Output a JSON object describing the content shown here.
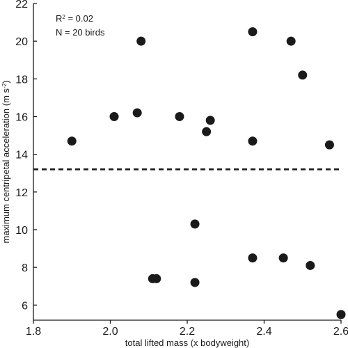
{
  "chart_data": {
    "type": "scatter",
    "xlabel": "total lifted mass (x bodyweight)",
    "ylabel_main": "maximum centripetal acceleration (m s",
    "ylabel_sup": "-2",
    "ylabel_end": ")",
    "xlim": [
      1.8,
      2.6
    ],
    "ylim": [
      5.2,
      22
    ],
    "xticks": [
      1.8,
      2.0,
      2.2,
      2.4,
      2.6
    ],
    "xtick_labels": [
      "1.8",
      "2.0",
      "2.2",
      "2.4",
      "2.6"
    ],
    "yticks": [
      6,
      8,
      10,
      12,
      14,
      16,
      18,
      20,
      22
    ],
    "ytick_labels": [
      "6",
      "8",
      "10",
      "12",
      "14",
      "16",
      "18",
      "20",
      "22"
    ],
    "reference_line": {
      "y": 13.2,
      "style": "dashed"
    },
    "annotations": {
      "r2_prefix": "R",
      "r2_sup": "2",
      "r2_suffix": " = 0.02",
      "n_text": "N = 20 birds"
    },
    "points": [
      {
        "x": 1.9,
        "y": 14.7
      },
      {
        "x": 2.01,
        "y": 16.0
      },
      {
        "x": 2.07,
        "y": 16.2
      },
      {
        "x": 2.08,
        "y": 20.0
      },
      {
        "x": 2.18,
        "y": 16.0
      },
      {
        "x": 2.25,
        "y": 15.2
      },
      {
        "x": 2.26,
        "y": 15.8
      },
      {
        "x": 2.37,
        "y": 20.5
      },
      {
        "x": 2.37,
        "y": 14.7
      },
      {
        "x": 2.47,
        "y": 20.0
      },
      {
        "x": 2.5,
        "y": 18.2
      },
      {
        "x": 2.57,
        "y": 14.5
      },
      {
        "x": 2.22,
        "y": 10.3
      },
      {
        "x": 2.11,
        "y": 7.4
      },
      {
        "x": 2.12,
        "y": 7.4
      },
      {
        "x": 2.22,
        "y": 7.2
      },
      {
        "x": 2.37,
        "y": 8.5
      },
      {
        "x": 2.45,
        "y": 8.5
      },
      {
        "x": 2.52,
        "y": 8.1
      },
      {
        "x": 2.6,
        "y": 5.5
      }
    ],
    "marker_color": "#1a1a1a",
    "grid": false,
    "legend": "none"
  }
}
